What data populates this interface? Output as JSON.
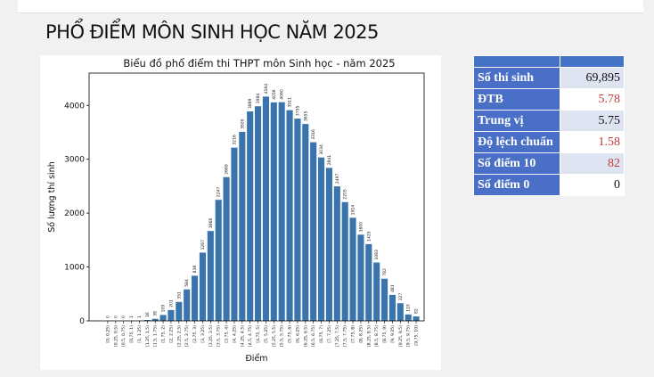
{
  "header": {
    "title": "PHỔ ĐIỂM MÔN SINH HỌC NĂM 2025"
  },
  "chart_data": {
    "type": "bar",
    "title": "Biểu đồ phổ điểm thi THPT môn Sinh học - năm 2025",
    "x_label": "Điểm",
    "y_label": "Số lượng thí sinh",
    "categories": [
      "[0, 0.25)",
      "[0.25, 0.5)",
      "[0.5, 0.75)",
      "[0.75, 1)",
      "[1, 1.25)",
      "[1.25, 1.5)",
      "[1.5, 1.75)",
      "[1.75, 2)",
      "[2, 2.25)",
      "[2.25, 2.5)",
      "[2.5, 2.75)",
      "[2.75, 3)",
      "[3, 3.25)",
      "[3.25, 3.5)",
      "[3.5, 3.75)",
      "[3.75, 4)",
      "[4, 4.25)",
      "[4.25, 4.5)",
      "[4.5, 4.75)",
      "[4.75, 5)",
      "[5, 5.25)",
      "[5.25, 5.5)",
      "[5.5, 5.75)",
      "[5.75, 6)",
      "[6, 6.25)",
      "[6.25, 6.5)",
      "[6.5, 6.75)",
      "[6.75, 7)",
      "[7, 7.25)",
      "[7.25, 7.5)",
      "[7.5, 7.75)",
      "[7.75, 8)",
      "[8, 8.25)",
      "[8.25, 8.5)",
      "[8.5, 8.75)",
      "[8.75, 9)",
      "[9, 9.25)",
      "[9.25, 9.5)",
      "[9.5, 9.75)",
      "[9.75, 10]"
    ],
    "values": [
      0,
      0,
      0,
      1,
      1,
      16,
      38,
      109,
      201,
      351,
      584,
      838,
      1267,
      1668,
      2247,
      2669,
      3216,
      3509,
      3889,
      3984,
      4164,
      4056,
      4060,
      3911,
      3755,
      3655,
      3316,
      3034,
      2841,
      2497,
      2205,
      1914,
      1600,
      1425,
      1083,
      782,
      481,
      327,
      119,
      82
    ],
    "color": "#3a74ad",
    "ylim": [
      0,
      4600
    ],
    "yticks": [
      0,
      1000,
      2000,
      3000,
      4000
    ]
  },
  "stats": {
    "rows": [
      [
        "Số thí sinh",
        "69,895"
      ],
      [
        "ĐTB",
        "5.78"
      ],
      [
        "Trung vị",
        "5.75"
      ],
      [
        "Độ lệch chuẩn",
        "1.58"
      ],
      [
        "Số điểm 10",
        "82"
      ],
      [
        "Số điểm 0",
        "0"
      ]
    ]
  }
}
